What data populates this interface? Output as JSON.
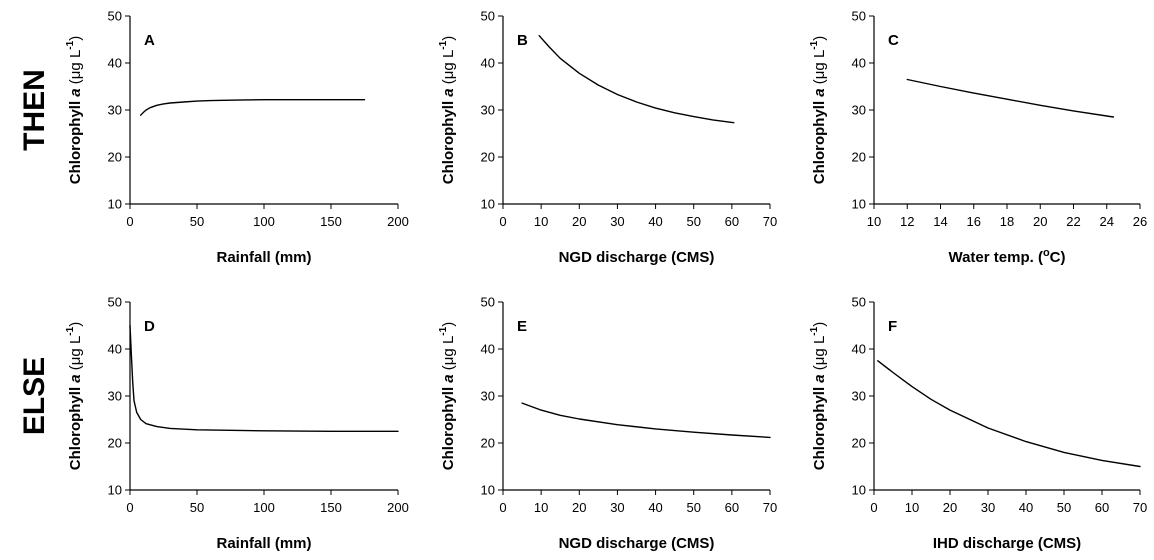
{
  "row_labels": [
    "THEN",
    "ELSE"
  ],
  "chart_data": [
    {
      "type": "line",
      "panel": "A",
      "xlabel": "Rainfall (mm)",
      "ylabel_parts": [
        "Chlorophyll ",
        "a",
        " (μg L",
        "-1",
        ")"
      ],
      "xlim": [
        0,
        200
      ],
      "ylim": [
        10,
        50
      ],
      "xticks": [
        0,
        50,
        100,
        150,
        200
      ],
      "yticks": [
        10,
        20,
        30,
        40,
        50
      ],
      "grid": false,
      "series": [
        {
          "x": [
            8,
            10,
            12,
            15,
            20,
            25,
            30,
            40,
            50,
            60,
            80,
            100,
            120,
            150,
            175
          ],
          "y": [
            28.9,
            29.5,
            30.0,
            30.5,
            31.0,
            31.3,
            31.5,
            31.7,
            31.9,
            32.0,
            32.1,
            32.2,
            32.2,
            32.2,
            32.2
          ]
        }
      ]
    },
    {
      "type": "line",
      "panel": "B",
      "xlabel": "NGD discharge (CMS)",
      "ylabel_parts": [
        "Chlorophyll ",
        "a",
        " (μg L",
        "-1",
        ")"
      ],
      "xlim": [
        0,
        70
      ],
      "ylim": [
        10,
        50
      ],
      "xticks": [
        0,
        10,
        20,
        30,
        40,
        50,
        60,
        70
      ],
      "yticks": [
        10,
        20,
        30,
        40,
        50
      ],
      "grid": false,
      "series": [
        {
          "x": [
            9.5,
            12,
            15,
            20,
            25,
            30,
            35,
            40,
            45,
            50,
            55,
            60.5
          ],
          "y": [
            45.8,
            43.5,
            41.0,
            37.8,
            35.3,
            33.3,
            31.7,
            30.4,
            29.4,
            28.6,
            27.9,
            27.3
          ]
        }
      ]
    },
    {
      "type": "line",
      "panel": "C",
      "xlabel_parts": [
        "Water temp. (",
        "o",
        "C)"
      ],
      "ylabel_parts": [
        "Chlorophyll ",
        "a",
        " (μg L",
        "-1",
        ")"
      ],
      "xlim": [
        10,
        26
      ],
      "ylim": [
        10,
        50
      ],
      "xticks": [
        10,
        12,
        14,
        16,
        18,
        20,
        22,
        24,
        26
      ],
      "yticks": [
        10,
        20,
        30,
        40,
        50
      ],
      "grid": false,
      "series": [
        {
          "x": [
            12,
            14,
            16,
            18,
            20,
            22,
            24.4
          ],
          "y": [
            36.5,
            35.0,
            33.6,
            32.3,
            31.0,
            29.8,
            28.5
          ]
        }
      ]
    },
    {
      "type": "line",
      "panel": "D",
      "xlabel": "Rainfall (mm)",
      "ylabel_parts": [
        "Chlorophyll ",
        "a",
        " (μg L",
        "-1",
        ")"
      ],
      "xlim": [
        0,
        200
      ],
      "ylim": [
        10,
        50
      ],
      "xticks": [
        0,
        50,
        100,
        150,
        200
      ],
      "yticks": [
        10,
        20,
        30,
        40,
        50
      ],
      "grid": false,
      "series": [
        {
          "x": [
            0,
            1,
            2,
            3,
            5,
            8,
            12,
            20,
            30,
            50,
            75,
            100,
            150,
            200
          ],
          "y": [
            45.0,
            39.0,
            33.0,
            29.0,
            26.5,
            25.0,
            24.1,
            23.5,
            23.1,
            22.8,
            22.7,
            22.6,
            22.5,
            22.5
          ]
        }
      ]
    },
    {
      "type": "line",
      "panel": "E",
      "xlabel": "NGD discharge (CMS)",
      "ylabel_parts": [
        "Chlorophyll ",
        "a",
        " (μg L",
        "-1",
        ")"
      ],
      "xlim": [
        0,
        70
      ],
      "ylim": [
        10,
        50
      ],
      "xticks": [
        0,
        10,
        20,
        30,
        40,
        50,
        60,
        70
      ],
      "yticks": [
        10,
        20,
        30,
        40,
        50
      ],
      "grid": false,
      "series": [
        {
          "x": [
            5,
            10,
            15,
            20,
            30,
            40,
            50,
            60,
            70
          ],
          "y": [
            28.5,
            27.0,
            25.9,
            25.1,
            23.9,
            23.0,
            22.3,
            21.7,
            21.2
          ]
        }
      ]
    },
    {
      "type": "line",
      "panel": "F",
      "xlabel": "IHD discharge (CMS)",
      "ylabel_parts": [
        "Chlorophyll ",
        "a",
        " (μg L",
        "-1",
        ")"
      ],
      "xlim": [
        0,
        70
      ],
      "ylim": [
        10,
        50
      ],
      "xticks": [
        0,
        10,
        20,
        30,
        40,
        50,
        60,
        70
      ],
      "yticks": [
        10,
        20,
        30,
        40,
        50
      ],
      "grid": false,
      "series": [
        {
          "x": [
            1,
            5,
            10,
            15,
            20,
            30,
            40,
            50,
            60,
            70
          ],
          "y": [
            37.5,
            35.0,
            32.0,
            29.3,
            27.0,
            23.2,
            20.3,
            18.0,
            16.3,
            15.0
          ]
        }
      ]
    }
  ]
}
